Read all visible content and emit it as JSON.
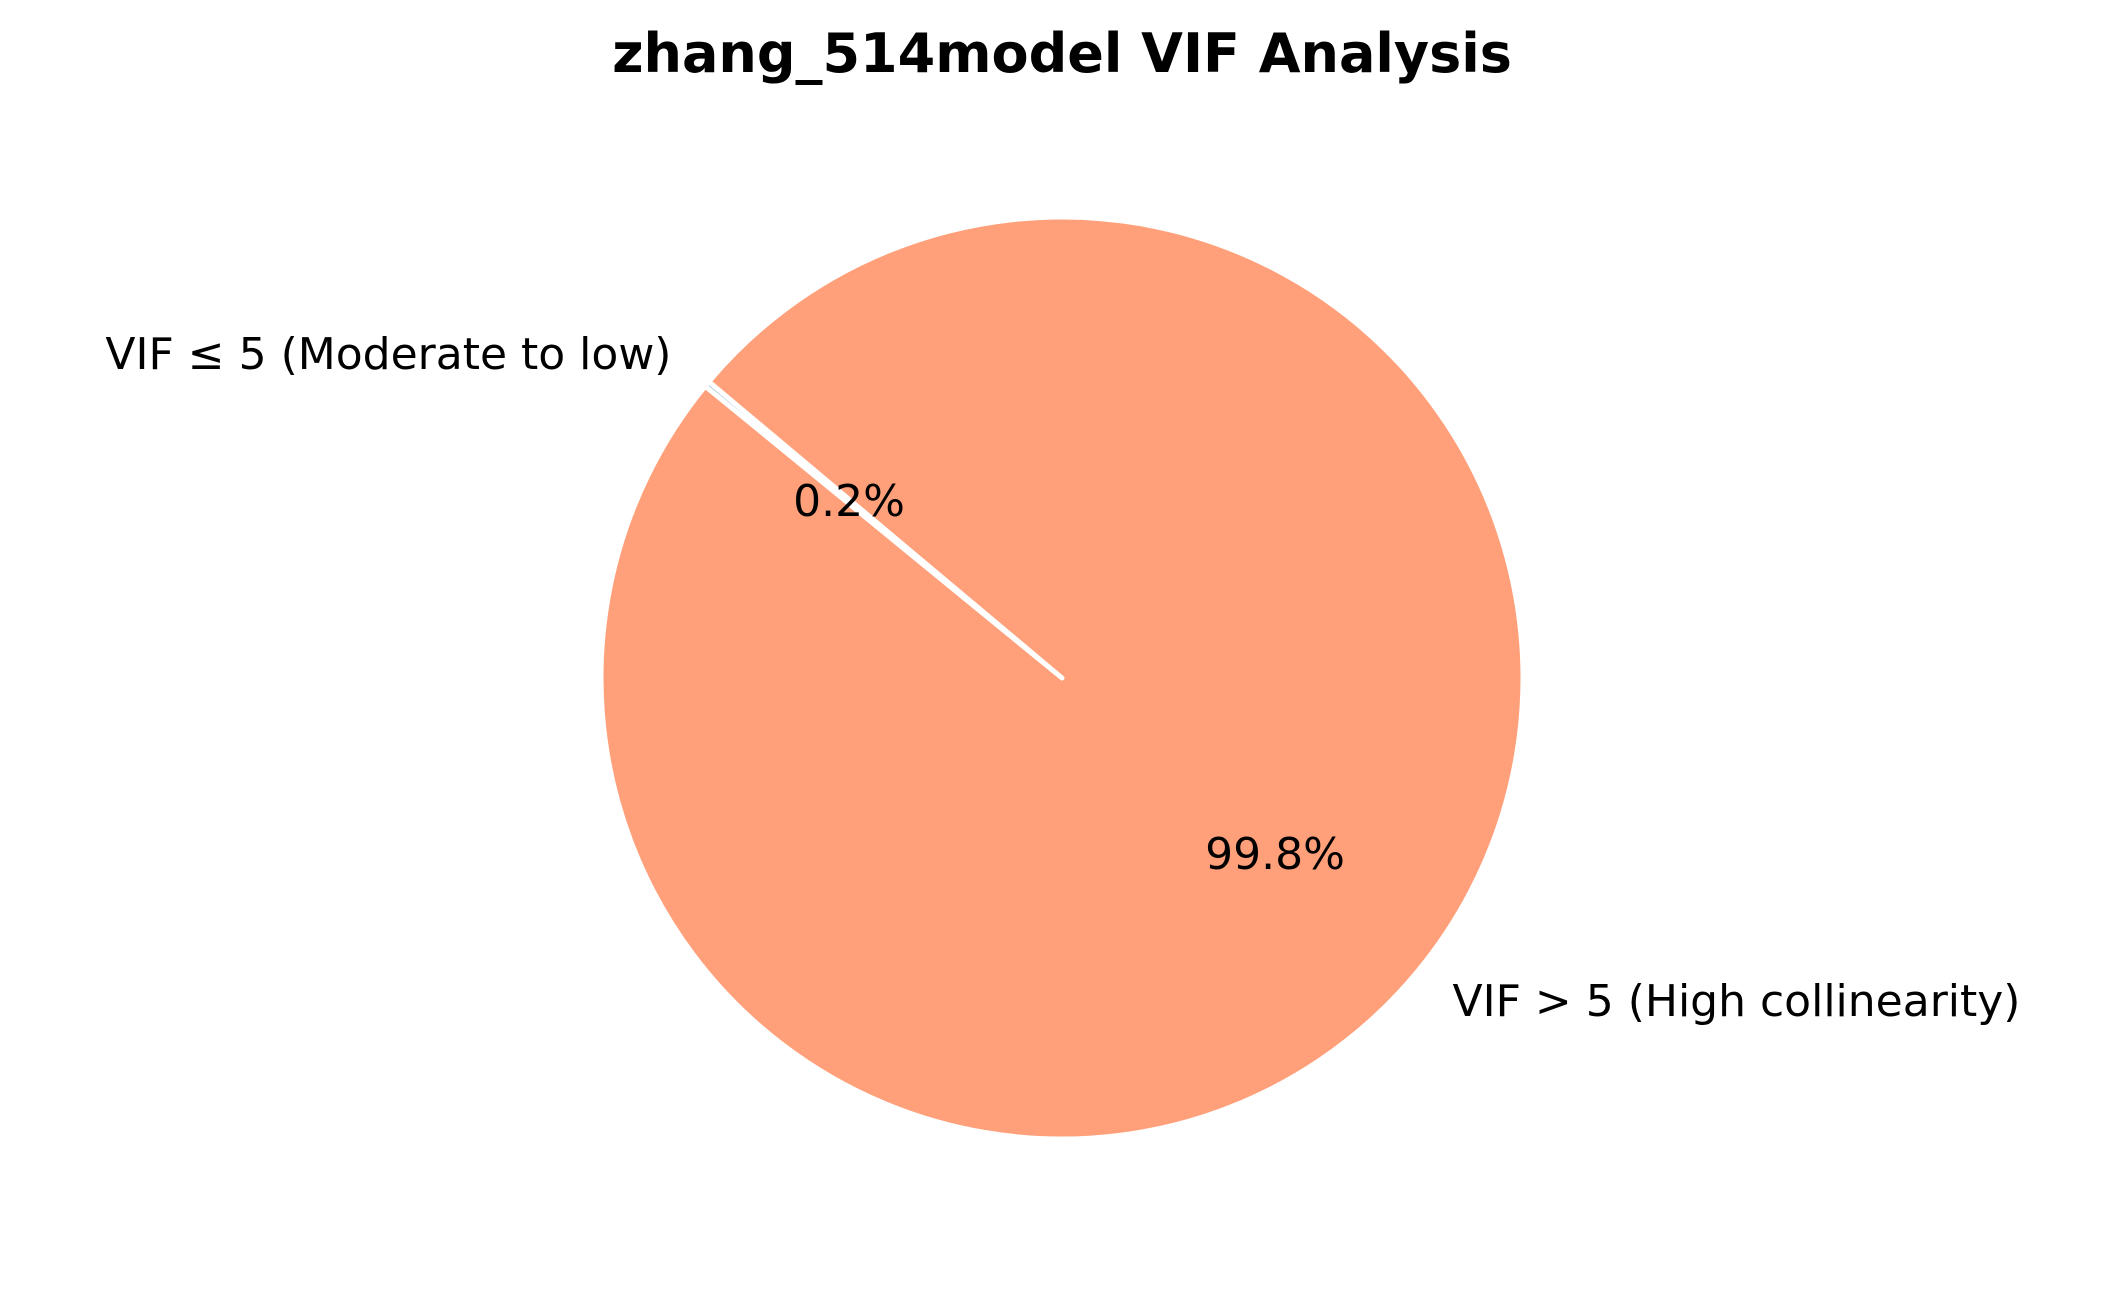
{
  "chart_data": {
    "type": "pie",
    "title": "zhang_514model VIF Analysis",
    "slices": [
      {
        "label": "VIF ≤ 5 (Moderate to low)",
        "value": 0.2,
        "pct_label": "0.2%",
        "color": "#7fb2d5"
      },
      {
        "label": "VIF > 5 (High collinearity)",
        "value": 99.8,
        "pct_label": "99.8%",
        "color": "#ffa07a"
      }
    ],
    "start_angle": 140,
    "direction": "counterclockwise",
    "edge_color": "#ffffff"
  }
}
